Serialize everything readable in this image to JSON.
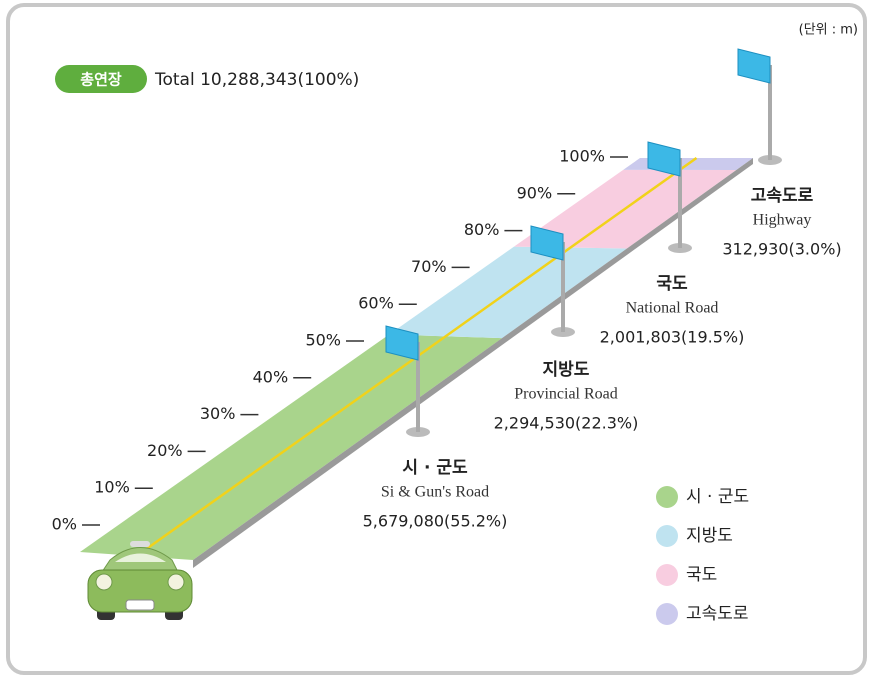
{
  "chart_data": {
    "type": "road",
    "unit": "(단위 : m)",
    "total_badge": "총연장",
    "total_label": "Total 10,288,343(100%)",
    "categories": [
      "시 · 군도",
      "지방도",
      "국도",
      "고속도로"
    ],
    "english_names": [
      "Si & Gun's Road",
      "Provincial Road",
      "National Road",
      "Highway"
    ],
    "values": [
      55.2,
      22.3,
      19.5,
      3.0
    ],
    "value_labels": [
      "5,679,080(55.2%)",
      "2,294,530(22.3%)",
      "2,001,803(19.5%)",
      "312,930(3.0%)"
    ],
    "colors": [
      "#a9d48c",
      "#bfe3f0",
      "#f8cde0",
      "#cbcaed"
    ],
    "ylim": [
      0,
      100
    ],
    "yticks": [
      {
        "value": 0,
        "label": "0%"
      },
      {
        "value": 10,
        "label": "10%"
      },
      {
        "value": 20,
        "label": "20%"
      },
      {
        "value": 30,
        "label": "30%"
      },
      {
        "value": 40,
        "label": "40%"
      },
      {
        "value": 50,
        "label": "50%"
      },
      {
        "value": 60,
        "label": "60%"
      },
      {
        "value": 70,
        "label": "70%"
      },
      {
        "value": 80,
        "label": "80%"
      },
      {
        "value": 90,
        "label": "90%"
      },
      {
        "value": 100,
        "label": "100%"
      }
    ]
  }
}
